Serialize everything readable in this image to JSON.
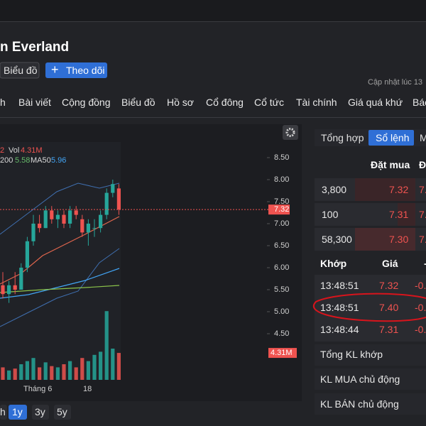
{
  "header": {
    "title": "n Everland",
    "buttons": [
      "Biểu đồ",
      "Theo dõi"
    ],
    "updated": "Cập nhật lúc 13"
  },
  "tabs": [
    "h",
    "Bài viết",
    "Cộng đồng",
    "Biểu đồ",
    "Hồ sơ",
    "Cổ đông",
    "Cổ tức",
    "Tài chính",
    "Giá quá khứ",
    "Báo"
  ],
  "chart": {
    "legend_1": [
      {
        "text": "2",
        "color": "#ef5350"
      },
      {
        "text": "Vol",
        "color": "#d8d8d8"
      },
      {
        "text": "4.31M",
        "color": "#ef5350"
      }
    ],
    "legend_2": [
      {
        "text": "200",
        "color": "#d8d8d8"
      },
      {
        "text": "5.58",
        "color": "#66bb6a"
      },
      {
        "text": "MA50",
        "color": "#d8d8d8"
      },
      {
        "text": "5.96",
        "color": "#42a5f5"
      }
    ],
    "price_ticks": [
      {
        "value": 8.5,
        "label": "8.50"
      },
      {
        "value": 8,
        "label": "8.00"
      },
      {
        "value": 7.5,
        "label": "7.50"
      },
      {
        "value": 7,
        "label": "7.00"
      },
      {
        "value": 6.5,
        "label": "6.50"
      },
      {
        "value": 6,
        "label": "6.00"
      },
      {
        "value": 5.5,
        "label": "5.50"
      },
      {
        "value": 5,
        "label": "5.00"
      },
      {
        "value": 4.5,
        "label": "4.50"
      }
    ],
    "last_price_label": "7.32",
    "volume_label": "4.31M",
    "x_labels": [
      "Tháng 6",
      "18"
    ],
    "up_color": "#26a69a",
    "down_color": "#ef5350",
    "candles": [
      [
        5.6,
        5.9,
        5.3,
        5.4
      ],
      [
        5.4,
        5.7,
        5.2,
        5.6
      ],
      [
        5.6,
        5.9,
        5.4,
        5.5
      ],
      [
        5.5,
        6.1,
        5.5,
        6.0
      ],
      [
        6.0,
        6.7,
        5.9,
        6.6
      ],
      [
        6.6,
        7.2,
        6.5,
        7.0
      ],
      [
        7.0,
        7.2,
        6.8,
        6.9
      ],
      [
        6.9,
        7.4,
        6.9,
        7.3
      ],
      [
        7.3,
        7.4,
        7.0,
        7.1
      ],
      [
        7.1,
        7.3,
        6.9,
        7.2
      ],
      [
        7.2,
        7.3,
        6.9,
        7.0
      ],
      [
        7.0,
        7.4,
        6.9,
        7.3
      ],
      [
        7.3,
        7.4,
        7.1,
        7.2
      ],
      [
        7.1,
        7.2,
        6.7,
        6.8
      ],
      [
        6.8,
        7.1,
        6.5,
        7.0
      ],
      [
        6.9,
        7.1,
        6.7,
        6.9
      ],
      [
        6.9,
        7.3,
        6.8,
        7.2
      ],
      [
        7.2,
        7.8,
        7.1,
        7.7
      ],
      [
        7.7,
        8.0,
        7.6,
        7.9
      ],
      [
        7.8,
        7.9,
        7.2,
        7.32
      ]
    ],
    "volumes": [
      2,
      1.5,
      1.8,
      2.5,
      3,
      3.5,
      2,
      2.8,
      2.2,
      2,
      2.5,
      3,
      2,
      3.5,
      3,
      4,
      4.5,
      11,
      5,
      4.31
    ],
    "ranges": [
      "h",
      "1y",
      "3y",
      "5y"
    ],
    "active_range": 1
  },
  "order_book": {
    "tabs": [
      "Tổng hợp",
      "Sổ lệnh",
      "M"
    ],
    "active_tab": 1,
    "bid_header": "Đặt mua",
    "ask_header": "Đ",
    "bids": [
      [
        "3,800",
        "7.32",
        "7."
      ],
      [
        "100",
        "7.31",
        "7."
      ],
      [
        "58,300",
        "7.30",
        "7."
      ]
    ],
    "trades_header": [
      "Khớp",
      "Giá",
      "-"
    ],
    "trades": [
      [
        "13:48:51",
        "7.32",
        "-0."
      ],
      [
        "13:48:51",
        "7.40",
        "-0."
      ],
      [
        "13:48:44",
        "7.31",
        "-0."
      ]
    ],
    "stats": [
      "Tổng KL khớp",
      "KL MUA chủ động",
      "KL BÁN chủ động"
    ]
  }
}
